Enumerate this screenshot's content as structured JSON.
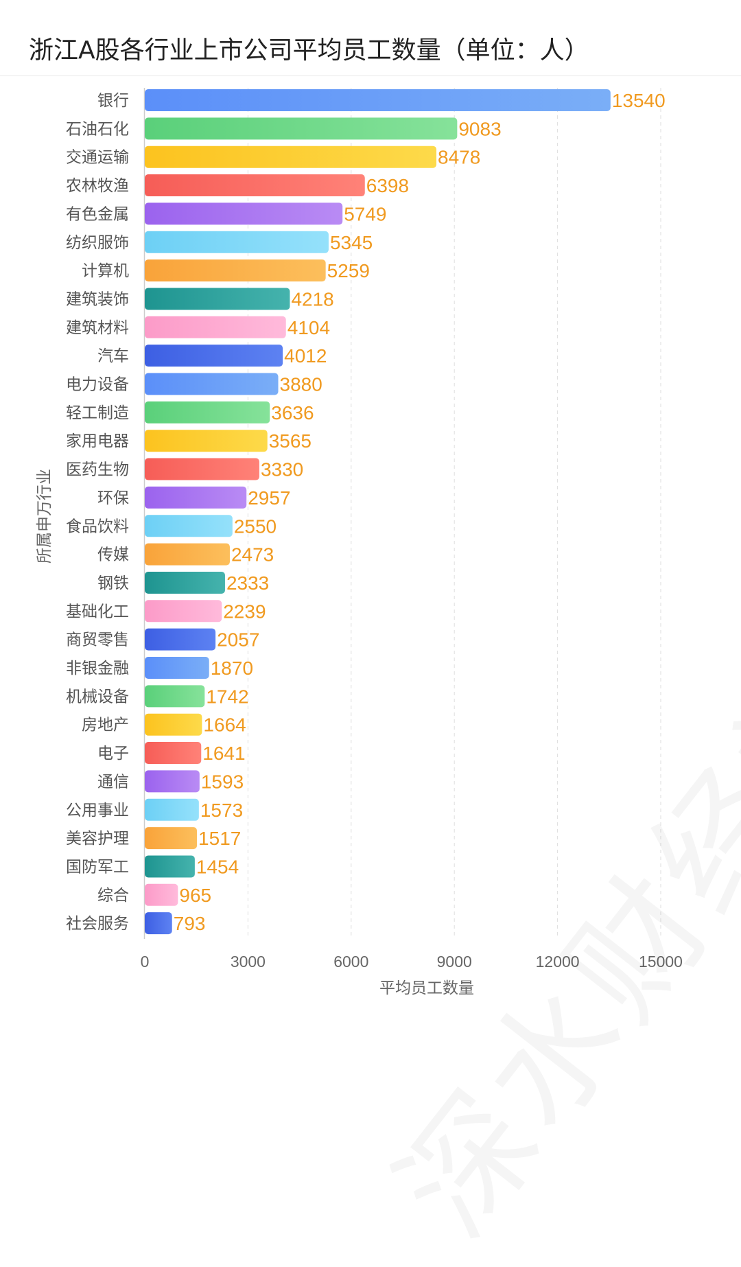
{
  "title": "浙江A股各行业上市公司平均员工数量（单位：人）",
  "watermark": "深水财经社",
  "chart_data": {
    "type": "bar",
    "orientation": "horizontal",
    "xlabel": "平均员工数量",
    "ylabel": "所属申万行业",
    "xlim": [
      0,
      15000
    ],
    "xticks": [
      0,
      3000,
      6000,
      9000,
      12000,
      15000
    ],
    "grid": "vertical-dashed",
    "categories": [
      "银行",
      "石油石化",
      "交通运输",
      "农林牧渔",
      "有色金属",
      "纺织服饰",
      "计算机",
      "建筑装饰",
      "建筑材料",
      "汽车",
      "电力设备",
      "轻工制造",
      "家用电器",
      "医药生物",
      "环保",
      "食品饮料",
      "传媒",
      "钢铁",
      "基础化工",
      "商贸零售",
      "非银金融",
      "机械设备",
      "房地产",
      "电子",
      "通信",
      "公用事业",
      "美容护理",
      "国防军工",
      "综合",
      "社会服务"
    ],
    "values": [
      13540,
      9083,
      8478,
      6398,
      5749,
      5345,
      5259,
      4218,
      4104,
      4012,
      3880,
      3636,
      3565,
      3330,
      2957,
      2550,
      2473,
      2333,
      2239,
      2057,
      1870,
      1742,
      1664,
      1641,
      1593,
      1573,
      1517,
      1454,
      965,
      793
    ],
    "label_color": "#f09a20",
    "palette": [
      [
        "#5b8ff9",
        "#7aaef7"
      ],
      [
        "#5ad07a",
        "#86e29a"
      ],
      [
        "#fcc31f",
        "#fdda4a"
      ],
      [
        "#f65d57",
        "#ff8278"
      ],
      [
        "#9b63ee",
        "#b98bf4"
      ],
      [
        "#6dd0f5",
        "#95e1fb"
      ],
      [
        "#f9a33a",
        "#fcbf5c"
      ],
      [
        "#1e9490",
        "#45b3ad"
      ],
      [
        "#fc9bc8",
        "#ffbadb"
      ],
      [
        "#3d5fe3",
        "#5d82f2"
      ]
    ]
  }
}
